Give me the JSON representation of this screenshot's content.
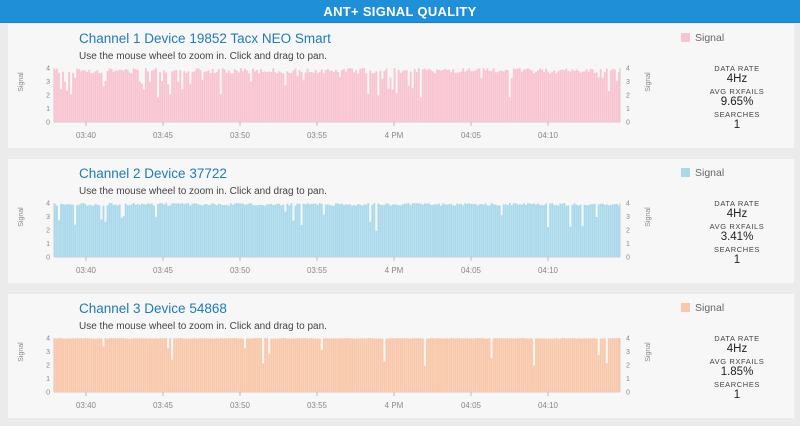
{
  "header": {
    "title": "ANT+ SIGNAL QUALITY"
  },
  "panels": [
    {
      "title": "Channel 1 Device 19852 Tacx NEO Smart",
      "subtitle": "Use the mouse wheel to zoom in. Click and drag to pan.",
      "legend": "Signal",
      "color": "#f9c4d1",
      "stats": {
        "data_rate_label": "DATA RATE",
        "data_rate": "4Hz",
        "avg_rxfails_label": "AVG RXFAILS",
        "avg_rxfails": "9.65%",
        "searches_label": "SEARCHES",
        "searches": "1"
      }
    },
    {
      "title": "Channel 2 Device 37722",
      "subtitle": "Use the mouse wheel to zoom in. Click and drag to pan.",
      "legend": "Signal",
      "color": "#aad9ec",
      "stats": {
        "data_rate_label": "DATA RATE",
        "data_rate": "4Hz",
        "avg_rxfails_label": "AVG RXFAILS",
        "avg_rxfails": "3.41%",
        "searches_label": "SEARCHES",
        "searches": "1"
      }
    },
    {
      "title": "Channel 3 Device 54868",
      "subtitle": "Use the mouse wheel to zoom in. Click and drag to pan.",
      "legend": "Signal",
      "color": "#f9c8aa",
      "stats": {
        "data_rate_label": "DATA RATE",
        "data_rate": "4Hz",
        "avg_rxfails_label": "AVG RXFAILS",
        "avg_rxfails": "1.85%",
        "searches_label": "SEARCHES",
        "searches": "1"
      }
    }
  ],
  "chart_data": [
    {
      "type": "bar",
      "series": [
        {
          "name": "Signal",
          "fill_level": 3.6,
          "max": 4,
          "fail_rate": 0.0965
        }
      ],
      "ylabel": "Signal",
      "ylim": [
        0,
        4
      ],
      "yticks": [
        "0",
        "1",
        "2",
        "3",
        "4"
      ],
      "xticks": [
        "03:40",
        "03:45",
        "03:50",
        "03:55",
        "4 PM",
        "04:05",
        "04:10"
      ]
    },
    {
      "type": "bar",
      "series": [
        {
          "name": "Signal",
          "fill_level": 3.8,
          "max": 4,
          "fail_rate": 0.0341
        }
      ],
      "ylabel": "Signal",
      "ylim": [
        0,
        4
      ],
      "yticks": [
        "0",
        "1",
        "2",
        "3",
        "4"
      ],
      "xticks": [
        "03:40",
        "03:45",
        "03:50",
        "03:55",
        "4 PM",
        "04:05",
        "04:10"
      ]
    },
    {
      "type": "bar",
      "series": [
        {
          "name": "Signal",
          "fill_level": 3.95,
          "max": 4,
          "fail_rate": 0.0185
        }
      ],
      "ylabel": "Signal",
      "ylim": [
        0,
        4
      ],
      "yticks": [
        "0",
        "1",
        "2",
        "3",
        "4"
      ],
      "xticks": [
        "03:40",
        "03:45",
        "03:50",
        "03:55",
        "4 PM",
        "04:05",
        "04:10"
      ]
    }
  ]
}
